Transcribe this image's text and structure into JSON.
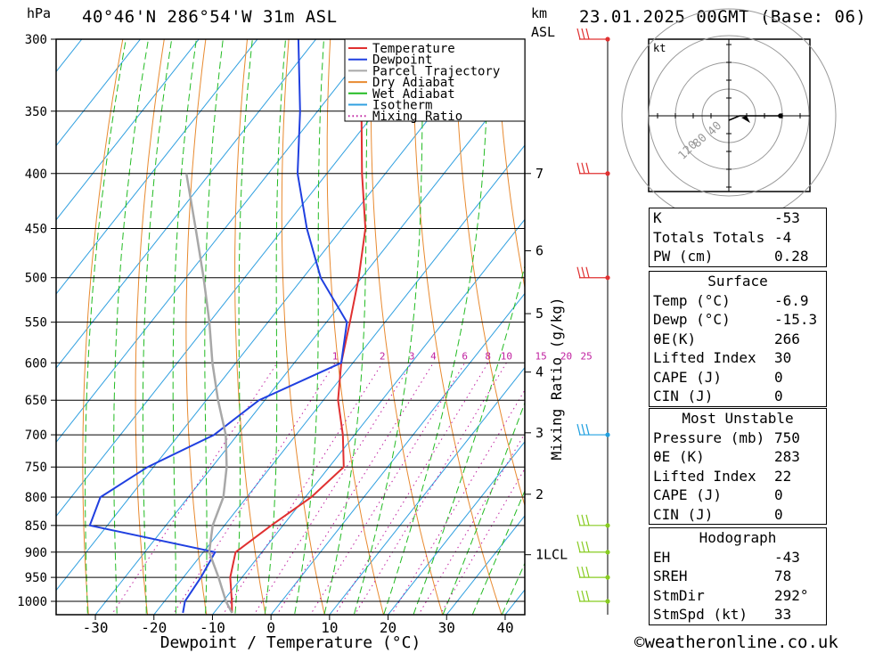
{
  "header": {
    "location": "40°46'N  286°54'W  31m  ASL",
    "datetime": "23.01.2025  00GMT  (Base: 06)",
    "pressure_unit": "hPa",
    "km_label": "km",
    "asl_label": "ASL"
  },
  "chart_data": {
    "type": "line",
    "subtype": "skew-T log-P",
    "xlabel": "Dewpoint / Temperature (°C)",
    "ylabel": "hPa",
    "mixing_ratio_axis_label": "Mixing Ratio (g/kg)",
    "x_ticks": [
      -30,
      -20,
      -10,
      0,
      10,
      20,
      30,
      40
    ],
    "y_ticks": [
      300,
      350,
      400,
      450,
      500,
      550,
      600,
      650,
      700,
      750,
      800,
      850,
      900,
      950,
      1000
    ],
    "ylim": [
      1025,
      300
    ],
    "xlim": [
      -38,
      40
    ],
    "height_km_ticks": [
      {
        "label": "7",
        "p": 400
      },
      {
        "label": "6",
        "p": 472
      },
      {
        "label": "5",
        "p": 540
      },
      {
        "label": "4",
        "p": 612
      },
      {
        "label": "3",
        "p": 697
      },
      {
        "label": "2",
        "p": 795
      },
      {
        "label": "1LCL",
        "p": 905
      }
    ],
    "mixing_ratio_labels": [
      "1",
      "2",
      "3",
      "4",
      "6",
      "8",
      "10",
      "15",
      "20",
      "25"
    ],
    "legend": [
      "Temperature",
      "Dewpoint",
      "Parcel Trajectory",
      "Dry Adiabat",
      "Wet Adiabat",
      "Isotherm",
      "Mixing Ratio"
    ],
    "legend_position": "top-right",
    "series": [
      {
        "name": "Temperature",
        "color": "#e03030",
        "points": [
          [
            1025,
            -6.9
          ],
          [
            1000,
            -8.5
          ],
          [
            950,
            -12
          ],
          [
            900,
            -14.5
          ],
          [
            850,
            -12
          ],
          [
            800,
            -9
          ],
          [
            750,
            -7.5
          ],
          [
            700,
            -12
          ],
          [
            650,
            -17.5
          ],
          [
            600,
            -22
          ],
          [
            550,
            -26
          ],
          [
            500,
            -30.5
          ],
          [
            450,
            -36
          ],
          [
            400,
            -44
          ],
          [
            350,
            -52.5
          ],
          [
            300,
            -59
          ]
        ]
      },
      {
        "name": "Dewpoint",
        "color": "#2040e0",
        "points": [
          [
            1025,
            -15.3
          ],
          [
            1000,
            -16.5
          ],
          [
            950,
            -17
          ],
          [
            900,
            -18
          ],
          [
            850,
            -43
          ],
          [
            800,
            -45
          ],
          [
            750,
            -41
          ],
          [
            700,
            -34
          ],
          [
            650,
            -31
          ],
          [
            600,
            -22
          ],
          [
            550,
            -26.5
          ],
          [
            500,
            -37
          ],
          [
            450,
            -46
          ],
          [
            400,
            -55
          ],
          [
            350,
            -63
          ],
          [
            300,
            -73
          ]
        ]
      },
      {
        "name": "Parcel Trajectory",
        "color": "#a8a8a8",
        "points": [
          [
            1025,
            -6.9
          ],
          [
            1000,
            -9.5
          ],
          [
            950,
            -14
          ],
          [
            900,
            -19
          ],
          [
            850,
            -22
          ],
          [
            800,
            -24
          ],
          [
            750,
            -27.5
          ],
          [
            700,
            -32
          ],
          [
            650,
            -38
          ],
          [
            600,
            -44
          ],
          [
            550,
            -50
          ],
          [
            500,
            -57
          ],
          [
            450,
            -65
          ],
          [
            400,
            -74
          ]
        ]
      }
    ],
    "wind_barbs": [
      {
        "p": 300,
        "color": "#e03030"
      },
      {
        "p": 400,
        "color": "#e03030"
      },
      {
        "p": 500,
        "color": "#e03030"
      },
      {
        "p": 700,
        "color": "#20a0e0"
      },
      {
        "p": 850,
        "color": "#88cc22"
      },
      {
        "p": 900,
        "color": "#88cc22"
      },
      {
        "p": 950,
        "color": "#88cc22"
      },
      {
        "p": 1000,
        "color": "#88cc22"
      }
    ]
  },
  "hodograph": {
    "unit": "kt",
    "ring_labels": [
      "40",
      "80",
      "120"
    ]
  },
  "indices": {
    "general": [
      {
        "label": "K",
        "value": "-53"
      },
      {
        "label": "Totals Totals",
        "value": "-4"
      },
      {
        "label": "PW (cm)",
        "value": "0.28"
      }
    ],
    "surface_title": "Surface",
    "surface": [
      {
        "label": "Temp (°C)",
        "value": "-6.9"
      },
      {
        "label": "Dewp (°C)",
        "value": "-15.3"
      },
      {
        "label": "θE(K)",
        "value": "266"
      },
      {
        "label": "Lifted Index",
        "value": "30"
      },
      {
        "label": "CAPE (J)",
        "value": "0"
      },
      {
        "label": "CIN (J)",
        "value": "0"
      }
    ],
    "unstable_title": "Most Unstable",
    "unstable": [
      {
        "label": "Pressure (mb)",
        "value": "750"
      },
      {
        "label": "θE (K)",
        "value": "283"
      },
      {
        "label": "Lifted Index",
        "value": "22"
      },
      {
        "label": "CAPE (J)",
        "value": "0"
      },
      {
        "label": "CIN (J)",
        "value": "0"
      }
    ],
    "hodo_title": "Hodograph",
    "hodo": [
      {
        "label": "EH",
        "value": "-43"
      },
      {
        "label": "SREH",
        "value": "78"
      },
      {
        "label": "StmDir",
        "value": "292°"
      },
      {
        "label": "StmSpd (kt)",
        "value": "33"
      }
    ]
  },
  "footer": "©weatheronline.co.uk"
}
